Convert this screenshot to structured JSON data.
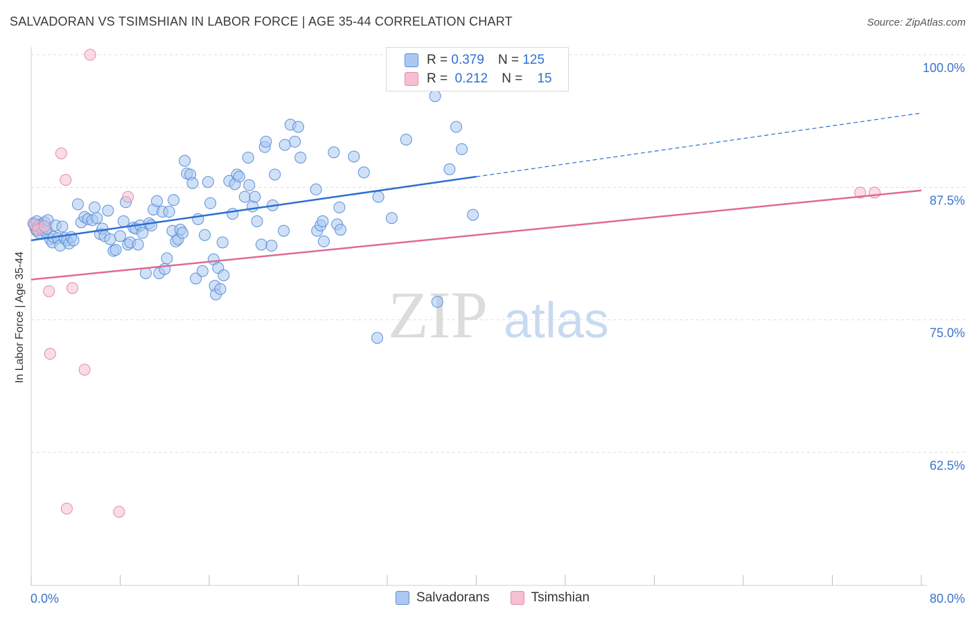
{
  "header": {
    "title": "SALVADORAN VS TSIMSHIAN IN LABOR FORCE | AGE 35-44 CORRELATION CHART",
    "source": "Source: ZipAtlas.com"
  },
  "watermark": {
    "zip": "ZIP",
    "atlas": "atlas"
  },
  "legend_top": {
    "rows": [
      {
        "r_label": "R =",
        "r_value": "0.379",
        "n_label": "N =",
        "n_value": "125"
      },
      {
        "r_label": "R =",
        "r_value": "0.212",
        "n_label": "N =",
        "n_value": "15"
      }
    ]
  },
  "legend_bottom": {
    "items": [
      "Salvadorans",
      "Tsimshian"
    ]
  },
  "colors": {
    "blue_fill": "#aac8f0",
    "blue_stroke": "#5b8fd9",
    "blue_line": "#2c6fd1",
    "pink_fill": "#f6bfd2",
    "pink_stroke": "#e48aab",
    "pink_line": "#e06a93",
    "tick_text": "#3b74c9",
    "grid": "#dddddd"
  },
  "chart_data": {
    "type": "scatter",
    "title": "SALVADORAN VS TSIMSHIAN IN LABOR FORCE | AGE 35-44 CORRELATION CHART",
    "xlabel": "",
    "ylabel": "In Labor Force | Age 35-44",
    "xlim": [
      0,
      80
    ],
    "ylim": [
      51,
      102
    ],
    "x_tick_labels": [
      {
        "value": 0,
        "label": "0.0%"
      },
      {
        "value": 80,
        "label": "80.0%"
      }
    ],
    "y_tick_labels": [
      {
        "value": 100,
        "label": "100.0%"
      },
      {
        "value": 87.5,
        "label": "87.5%"
      },
      {
        "value": 75,
        "label": "75.0%"
      },
      {
        "value": 62.5,
        "label": "62.5%"
      }
    ],
    "grid": true,
    "legend_position": "top-center",
    "series": [
      {
        "name": "Salvadorans",
        "R": 0.379,
        "N": 125,
        "trend": {
          "x0": 0,
          "y0": 82.5,
          "x1": 40,
          "y1": 88.5,
          "dashed_to": 80,
          "dashed_y": 94.5
        },
        "points": [
          [
            0.2,
            84.1
          ],
          [
            0.3,
            83.9
          ],
          [
            0.4,
            83.6
          ],
          [
            0.5,
            83.4
          ],
          [
            0.5,
            84.3
          ],
          [
            0.6,
            83.8
          ],
          [
            0.7,
            83.2
          ],
          [
            0.8,
            84.0
          ],
          [
            0.9,
            83.7
          ],
          [
            1.0,
            83.5
          ],
          [
            1.1,
            83.9
          ],
          [
            1.2,
            84.2
          ],
          [
            1.3,
            83.3
          ],
          [
            1.4,
            83.6
          ],
          [
            1.5,
            84.4
          ],
          [
            1.7,
            82.6
          ],
          [
            1.9,
            82.3
          ],
          [
            2.0,
            82.8
          ],
          [
            2.2,
            83.9
          ],
          [
            2.4,
            82.7
          ],
          [
            2.6,
            82.0
          ],
          [
            2.8,
            83.8
          ],
          [
            3.0,
            82.7
          ],
          [
            3.2,
            82.5
          ],
          [
            3.4,
            82.2
          ],
          [
            3.6,
            82.8
          ],
          [
            3.8,
            82.5
          ],
          [
            4.2,
            85.9
          ],
          [
            4.5,
            84.2
          ],
          [
            4.8,
            84.7
          ],
          [
            5.1,
            84.5
          ],
          [
            5.5,
            84.4
          ],
          [
            5.7,
            85.6
          ],
          [
            5.9,
            84.6
          ],
          [
            6.2,
            83.1
          ],
          [
            6.4,
            83.6
          ],
          [
            6.6,
            82.9
          ],
          [
            6.9,
            85.3
          ],
          [
            7.1,
            82.6
          ],
          [
            7.4,
            81.5
          ],
          [
            7.6,
            81.6
          ],
          [
            8.0,
            82.9
          ],
          [
            8.3,
            84.3
          ],
          [
            8.5,
            86.1
          ],
          [
            8.7,
            82.1
          ],
          [
            8.9,
            82.3
          ],
          [
            9.2,
            83.7
          ],
          [
            9.4,
            83.6
          ],
          [
            9.6,
            82.1
          ],
          [
            9.8,
            83.9
          ],
          [
            10.0,
            83.2
          ],
          [
            10.3,
            79.4
          ],
          [
            10.6,
            84.1
          ],
          [
            10.8,
            83.9
          ],
          [
            11.0,
            85.4
          ],
          [
            11.3,
            86.2
          ],
          [
            11.5,
            79.4
          ],
          [
            11.8,
            85.2
          ],
          [
            12.0,
            79.8
          ],
          [
            12.2,
            80.8
          ],
          [
            12.4,
            85.2
          ],
          [
            12.7,
            83.4
          ],
          [
            12.8,
            86.3
          ],
          [
            13.0,
            82.4
          ],
          [
            13.2,
            82.6
          ],
          [
            13.4,
            83.5
          ],
          [
            13.6,
            83.2
          ],
          [
            13.8,
            90.0
          ],
          [
            14.0,
            88.8
          ],
          [
            14.3,
            88.7
          ],
          [
            14.5,
            87.9
          ],
          [
            14.8,
            78.9
          ],
          [
            15.0,
            84.5
          ],
          [
            15.4,
            79.6
          ],
          [
            15.6,
            83.0
          ],
          [
            15.9,
            88.0
          ],
          [
            16.1,
            86.0
          ],
          [
            16.4,
            80.7
          ],
          [
            16.5,
            78.2
          ],
          [
            16.6,
            77.4
          ],
          [
            16.8,
            79.9
          ],
          [
            17.0,
            77.9
          ],
          [
            17.2,
            82.3
          ],
          [
            17.3,
            79.2
          ],
          [
            17.8,
            88.1
          ],
          [
            18.1,
            85.0
          ],
          [
            18.3,
            87.8
          ],
          [
            18.5,
            88.7
          ],
          [
            18.7,
            88.5
          ],
          [
            19.2,
            86.6
          ],
          [
            19.5,
            90.3
          ],
          [
            19.6,
            87.7
          ],
          [
            19.9,
            85.7
          ],
          [
            20.1,
            86.6
          ],
          [
            20.3,
            84.3
          ],
          [
            20.7,
            82.1
          ],
          [
            21.0,
            91.3
          ],
          [
            21.1,
            91.8
          ],
          [
            21.6,
            82.0
          ],
          [
            21.7,
            85.8
          ],
          [
            21.9,
            88.7
          ],
          [
            22.7,
            83.4
          ],
          [
            22.8,
            91.5
          ],
          [
            23.3,
            93.4
          ],
          [
            23.7,
            91.8
          ],
          [
            24.0,
            93.2
          ],
          [
            24.2,
            90.3
          ],
          [
            25.6,
            87.3
          ],
          [
            25.7,
            83.4
          ],
          [
            26.0,
            83.9
          ],
          [
            26.2,
            84.3
          ],
          [
            26.3,
            82.4
          ],
          [
            27.2,
            90.8
          ],
          [
            27.5,
            84.0
          ],
          [
            27.7,
            85.6
          ],
          [
            27.8,
            83.5
          ],
          [
            29.0,
            90.4
          ],
          [
            29.9,
            88.9
          ],
          [
            31.1,
            73.3
          ],
          [
            31.2,
            86.6
          ],
          [
            32.4,
            84.6
          ],
          [
            33.7,
            92.0
          ],
          [
            36.3,
            96.1
          ],
          [
            36.5,
            76.7
          ],
          [
            37.6,
            89.2
          ],
          [
            38.2,
            93.2
          ],
          [
            38.7,
            91.1
          ],
          [
            39.7,
            84.9
          ]
        ]
      },
      {
        "name": "Tsimshian",
        "R": 0.212,
        "N": 15,
        "trend": {
          "x0": 0,
          "y0": 78.8,
          "x1": 80,
          "y1": 87.2
        },
        "points": [
          [
            0.3,
            84.0
          ],
          [
            0.6,
            83.5
          ],
          [
            1.2,
            83.8
          ],
          [
            1.6,
            77.7
          ],
          [
            1.7,
            71.8
          ],
          [
            2.7,
            90.7
          ],
          [
            3.1,
            88.2
          ],
          [
            3.2,
            57.2
          ],
          [
            3.7,
            78.0
          ],
          [
            4.8,
            70.3
          ],
          [
            5.3,
            100.0
          ],
          [
            7.9,
            56.9
          ],
          [
            8.7,
            86.6
          ],
          [
            74.5,
            87.0
          ],
          [
            75.8,
            87.0
          ]
        ]
      }
    ]
  }
}
